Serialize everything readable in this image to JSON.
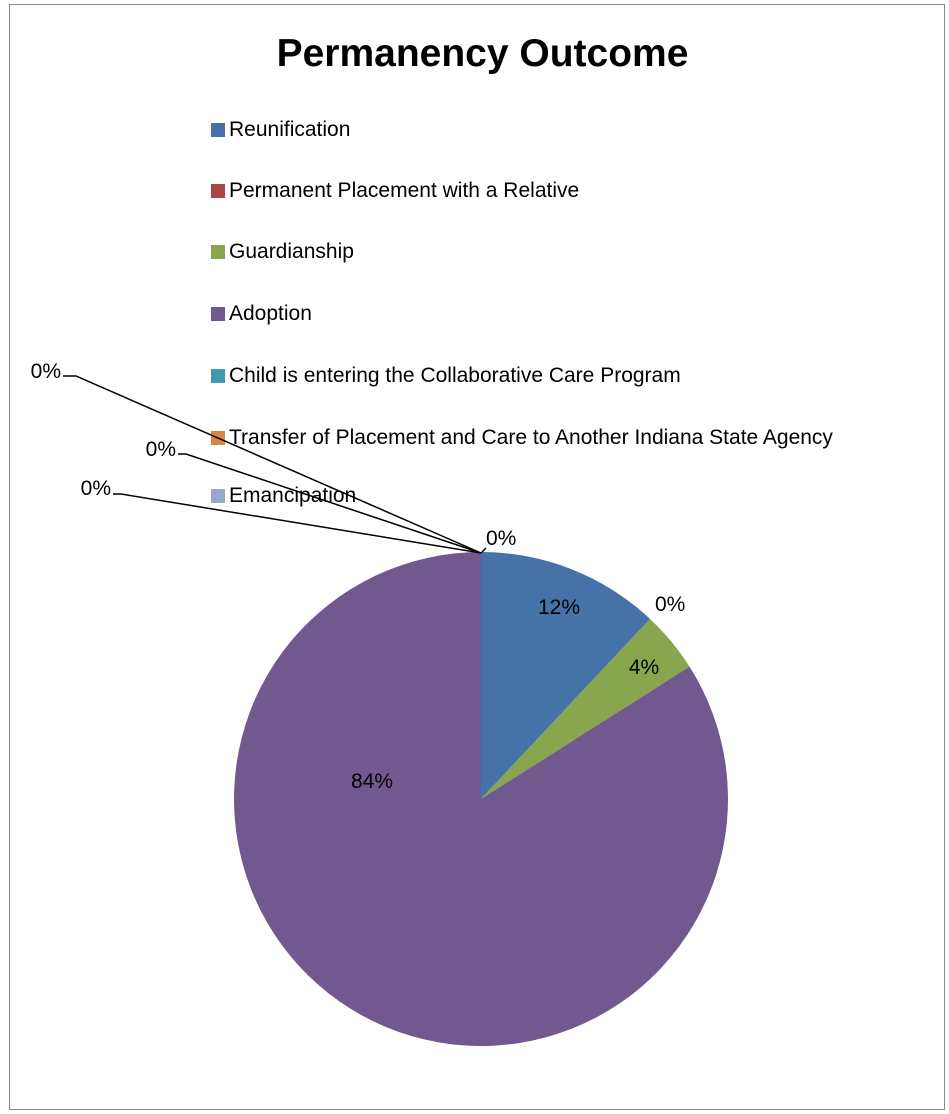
{
  "chart_data": {
    "type": "pie",
    "title": "Permanency Outcome",
    "categories": [
      "Reunification",
      "Permanent Placement with a Relative",
      "Guardianship",
      "Adoption",
      "Child is entering the Collaborative Care Program",
      "Transfer of Placement and Care to Another Indiana State Agency",
      "Emancipation"
    ],
    "values": [
      12,
      0,
      4,
      84,
      0,
      0,
      0
    ],
    "data_labels": [
      "12%",
      "0%",
      "4%",
      "84%",
      "0%",
      "0%",
      "0%"
    ],
    "colors": [
      "#4572A7",
      "#AA4643",
      "#89A54E",
      "#71588F",
      "#4198AF",
      "#DB843D",
      "#93A9CF"
    ],
    "legend_position": "top"
  }
}
